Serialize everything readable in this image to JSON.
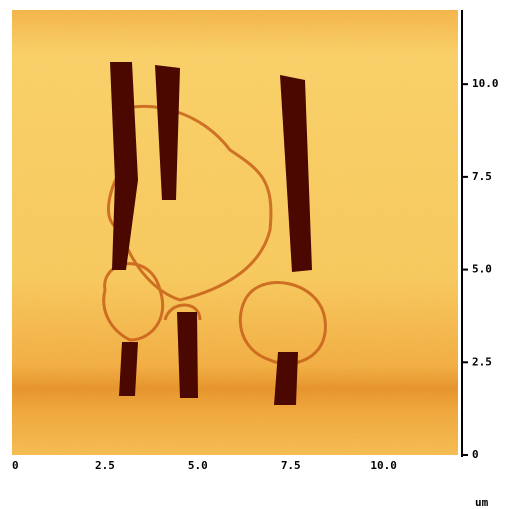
{
  "chart_data": {
    "type": "image",
    "xlim": [
      0,
      12
    ],
    "ylim": [
      0,
      12
    ],
    "xticks": [
      0,
      2.5,
      {
        "value": 5,
        "label": "5.0"
      },
      7.5,
      {
        "value": 10,
        "label": "10.0"
      }
    ],
    "yticks": [
      0,
      2.5,
      {
        "value": 5,
        "label": "5.0"
      },
      7.5,
      {
        "value": 10,
        "label": "10.0"
      }
    ],
    "unit": "um"
  }
}
